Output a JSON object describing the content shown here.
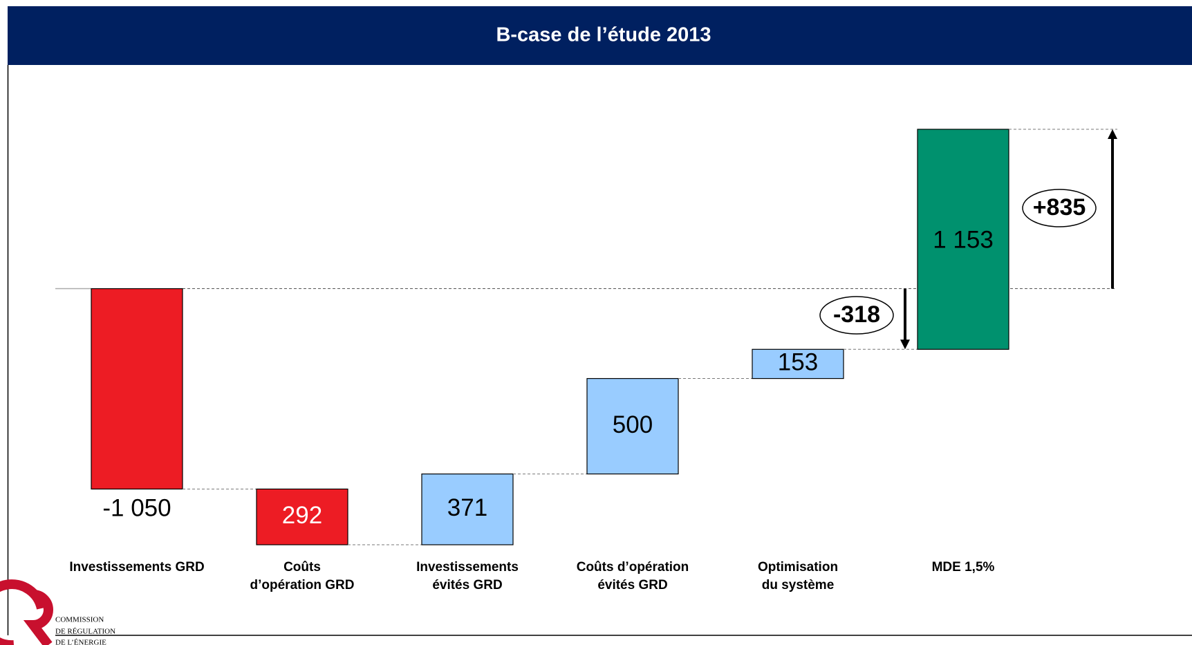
{
  "chart_data": {
    "type": "waterfall",
    "title": "B-case de l’étude 2013",
    "categories": [
      "Investissements GRD",
      "Coûts\nd’opération GRD",
      "Investissements\névités GRD",
      "Coûts d’opération\névités GRD",
      "Optimisation\ndu système",
      "MDE 1,5%"
    ],
    "values": [
      -1050,
      -292,
      371,
      500,
      153,
      1153
    ],
    "value_labels": [
      "-1 050",
      "292",
      "371",
      "500",
      "153",
      "1 153"
    ],
    "colors": [
      "#ed1c24",
      "#ed1c24",
      "#99ccff",
      "#99ccff",
      "#99ccff",
      "#00916e"
    ],
    "annotations": [
      {
        "label": "-318",
        "value": -318
      },
      {
        "label": "+835",
        "value": 835
      }
    ]
  },
  "logo": {
    "lines": [
      "COMMISSION",
      "DE RÉGULATION",
      "DE L’ÉNERGIE"
    ]
  }
}
